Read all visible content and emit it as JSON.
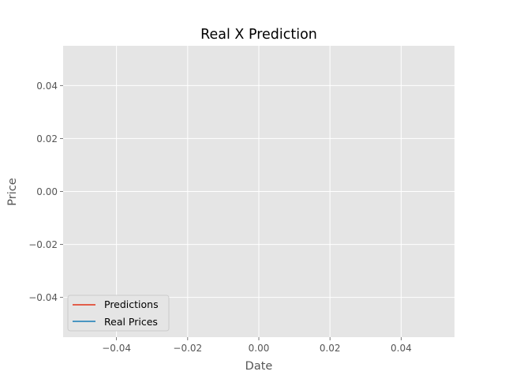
{
  "chart_data": {
    "type": "line",
    "title": "Real X Prediction",
    "xlabel": "Date",
    "ylabel": "Price",
    "xlim": [
      -0.055,
      0.055
    ],
    "ylim": [
      -0.055,
      0.055
    ],
    "xticks": [
      -0.04,
      -0.02,
      0.0,
      0.02,
      0.04
    ],
    "xtick_labels": [
      "−0.04",
      "−0.02",
      "0.00",
      "0.02",
      "0.04"
    ],
    "yticks": [
      -0.04,
      -0.02,
      0.0,
      0.02,
      0.04
    ],
    "ytick_labels": [
      "−0.04",
      "−0.02",
      "0.00",
      "0.02",
      "0.04"
    ],
    "grid": true,
    "legend_position": "lower-left",
    "series": [
      {
        "name": "Predictions",
        "color": "#E24A33",
        "x": [],
        "y": []
      },
      {
        "name": "Real Prices",
        "color": "#348ABD",
        "x": [],
        "y": []
      }
    ]
  },
  "style": {
    "plot_background": "#E5E5E5",
    "grid_color": "#FFFFFF",
    "legend_background": "#E5E5E5",
    "legend_border": "#CCCCCC"
  }
}
